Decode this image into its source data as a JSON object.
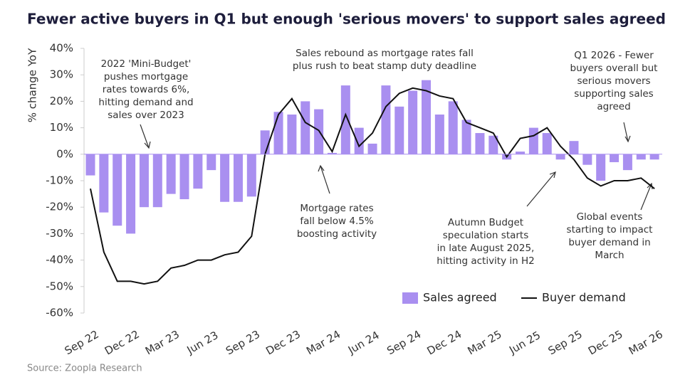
{
  "chart_data": {
    "type": "combo",
    "title": "Fewer active buyers in Q1 but enough 'serious movers' to support sales agreed",
    "y_label": "% change YoY",
    "source": "Source: Zoopla Research",
    "categories": [
      "Sep 22",
      null,
      null,
      "Dec 22",
      null,
      null,
      "Mar 23",
      null,
      null,
      "Jun 23",
      null,
      null,
      "Sep 23",
      null,
      null,
      "Dec 23",
      null,
      null,
      "Mar 24",
      null,
      null,
      "Jun 24",
      null,
      null,
      "Sep 24",
      null,
      null,
      "Dec 24",
      null,
      null,
      "Mar 25",
      null,
      null,
      "Jun 25",
      null,
      null,
      "Sep 25",
      null,
      null,
      "Dec 25",
      null,
      null,
      "Mar 26"
    ],
    "series": [
      {
        "name": "Sales agreed",
        "type": "bar",
        "color": "#a98ff0",
        "values": [
          -8,
          -22,
          -27,
          -30,
          -20,
          -20,
          -15,
          -17,
          -13,
          -6,
          -18,
          -18,
          -16,
          9,
          16,
          15,
          20,
          17,
          0.5,
          26,
          10,
          4,
          26,
          18,
          24,
          28,
          15,
          20,
          13,
          8,
          7,
          -2,
          1,
          10,
          8,
          -2,
          5,
          -4,
          -10,
          -3,
          -6,
          -2,
          -2
        ]
      },
      {
        "name": "Buyer demand",
        "type": "line",
        "color": "#111111",
        "values": [
          -13,
          -37,
          -48,
          -48,
          -49,
          -48,
          -43,
          -42,
          -40,
          -40,
          -38,
          -37,
          -31,
          0,
          15,
          21,
          12,
          9,
          1,
          15,
          3,
          8,
          18,
          23,
          25,
          24,
          22,
          21,
          12,
          10,
          8,
          -1,
          6,
          7,
          10,
          3,
          -2,
          -9,
          -12,
          -10,
          -10,
          -9,
          -13
        ]
      }
    ],
    "ylim": [
      -60,
      40
    ],
    "yticks": [
      {
        "value": -60,
        "label": "-60%"
      },
      {
        "value": -50,
        "label": "-50%"
      },
      {
        "value": -40,
        "label": "-40%"
      },
      {
        "value": -30,
        "label": "-30%"
      },
      {
        "value": -20,
        "label": "-20%"
      },
      {
        "value": -10,
        "label": "-10%"
      },
      {
        "value": 0,
        "label": "0%"
      },
      {
        "value": 10,
        "label": "10%"
      },
      {
        "value": 20,
        "label": "20%"
      },
      {
        "value": 30,
        "label": "30%"
      },
      {
        "value": 40,
        "label": "40%"
      }
    ],
    "annotations": [
      {
        "lines": [
          "2022 'Mini-Budget'",
          "pushes mortgage",
          "rates towards 6%,",
          "hitting demand and",
          "sales over 2023"
        ]
      },
      {
        "lines": [
          "Sales rebound as mortgage rates fall",
          "plus rush to beat stamp duty deadline"
        ]
      },
      {
        "lines": [
          "Q1 2026 - Fewer",
          "buyers overall but",
          "serious movers",
          "supporting sales",
          "agreed"
        ]
      },
      {
        "lines": [
          "Mortgage rates",
          "fall below 4.5%",
          "boosting activity"
        ]
      },
      {
        "lines": [
          "Autumn Budget",
          "speculation starts",
          "in late August 2025,",
          "hitting activity in H2"
        ]
      },
      {
        "lines": [
          "Global events",
          "starting to impact",
          "buyer demand in",
          "March"
        ]
      }
    ]
  }
}
